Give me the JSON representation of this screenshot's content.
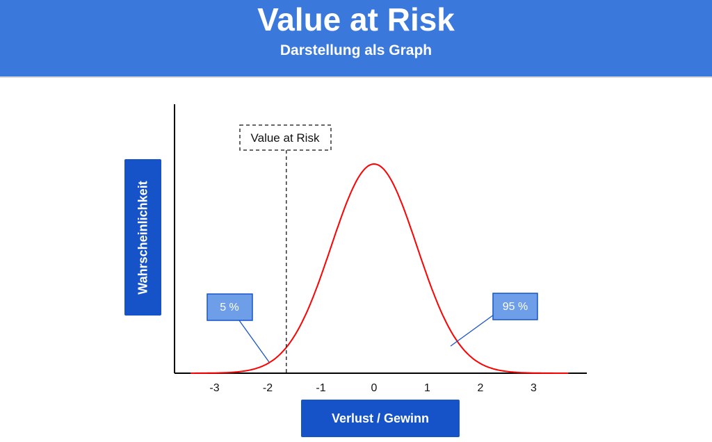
{
  "header": {
    "title": "Value at Risk",
    "subtitle": "Darstellung als Graph"
  },
  "colors": {
    "header_bg": "#3b78dc",
    "label_box_bg": "#1653c9",
    "callout_bg": "#6f9ee8",
    "curve": "#ff0000"
  },
  "chart_data": {
    "type": "line",
    "xlabel": "Verlust / Gewinn",
    "ylabel": "Wahrscheinlichkeit",
    "x_ticks": [
      "-3",
      "-2",
      "-1",
      "0",
      "1",
      "2",
      "3"
    ],
    "xlim": [
      -3.5,
      4.0
    ],
    "curve": "normal distribution",
    "var_line_x": -1.65,
    "annotations": {
      "var_label": "Value at Risk",
      "left_tail": "5 %",
      "right_area": "95 %"
    }
  }
}
